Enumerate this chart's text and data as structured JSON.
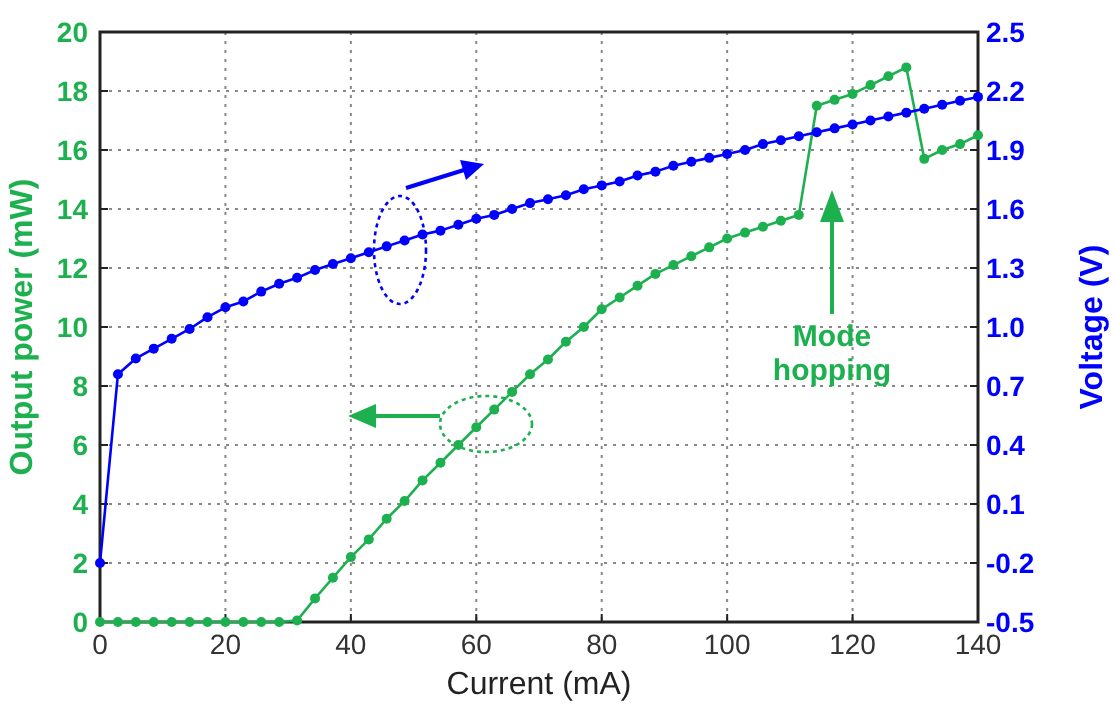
{
  "chart_data": {
    "type": "line",
    "xlabel": "Current (mA)",
    "ylabel": "Output power (mW)",
    "y2label": "Voltage (V)",
    "x": [
      0,
      2.86,
      5.71,
      8.57,
      11.43,
      14.29,
      17.14,
      20,
      22.86,
      25.71,
      28.57,
      31.43,
      34.29,
      37.14,
      40,
      42.86,
      45.71,
      48.57,
      51.43,
      54.29,
      57.14,
      60,
      62.86,
      65.71,
      68.57,
      71.43,
      74.29,
      77.14,
      80,
      82.86,
      85.71,
      88.57,
      91.43,
      94.29,
      97.14,
      100,
      102.86,
      105.71,
      108.57,
      111.43,
      114.29,
      117.14,
      120,
      122.86,
      125.71,
      128.57,
      131.43,
      134.29,
      137.14,
      140
    ],
    "series": [
      {
        "color": "#1db04f",
        "values": [
          0,
          0,
          0,
          0,
          0,
          0,
          0,
          0,
          0,
          0,
          0,
          0.05,
          0.8,
          1.5,
          2.2,
          2.8,
          3.5,
          4.1,
          4.8,
          5.4,
          6.0,
          6.6,
          7.2,
          7.8,
          8.4,
          8.9,
          9.5,
          10.0,
          10.6,
          11.0,
          11.4,
          11.8,
          12.1,
          12.4,
          12.7,
          13.0,
          13.2,
          13.4,
          13.6,
          13.8,
          17.5,
          17.7,
          17.9,
          18.2,
          18.5,
          18.8,
          15.7,
          16.0,
          16.2,
          16.5
        ]
      },
      {
        "color": "#0000ff",
        "axis": "y2",
        "values": [
          -0.2,
          0.76,
          0.84,
          0.89,
          0.94,
          0.99,
          1.05,
          1.1,
          1.13,
          1.18,
          1.22,
          1.25,
          1.29,
          1.32,
          1.35,
          1.38,
          1.41,
          1.44,
          1.47,
          1.49,
          1.52,
          1.55,
          1.57,
          1.6,
          1.63,
          1.65,
          1.67,
          1.7,
          1.72,
          1.74,
          1.77,
          1.79,
          1.82,
          1.84,
          1.86,
          1.88,
          1.9,
          1.93,
          1.95,
          1.97,
          1.99,
          2.01,
          2.03,
          2.05,
          2.07,
          2.09,
          2.11,
          2.13,
          2.15,
          2.17
        ]
      }
    ],
    "xlim": [
      0,
      140
    ],
    "xticks": [
      0,
      20,
      40,
      60,
      80,
      100,
      120,
      140
    ],
    "ylim": [
      0,
      20
    ],
    "yticks": [
      0,
      2,
      4,
      6,
      8,
      10,
      12,
      14,
      16,
      18,
      20
    ],
    "y2lim": [
      -0.5,
      2.5
    ],
    "y2ticks": [
      -0.5,
      -0.2,
      0.1,
      0.4,
      0.7,
      {
        "value": 1,
        "label": "1.0"
      },
      1.3,
      1.6,
      1.9,
      2.2,
      2.5
    ],
    "annotations": [
      "Mode hopping"
    ],
    "grid": true,
    "marker": "circle",
    "line_style": "solid"
  }
}
